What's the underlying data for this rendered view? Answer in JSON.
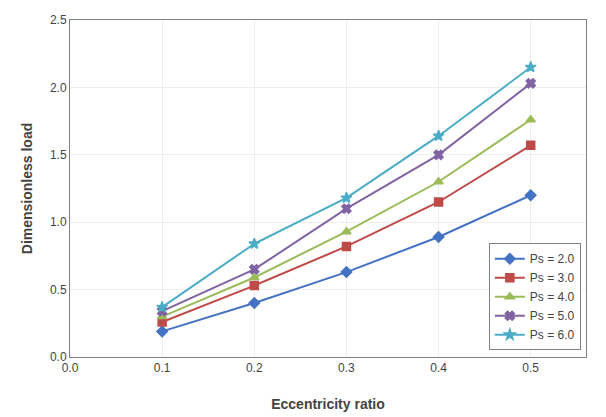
{
  "chart_data": {
    "type": "line",
    "x": [
      0.1,
      0.2,
      0.3,
      0.4,
      0.5
    ],
    "series": [
      {
        "name": "Ps = 2.0",
        "color": "#4472C4",
        "marker": "diamond",
        "values": [
          0.19,
          0.4,
          0.63,
          0.89,
          1.2
        ]
      },
      {
        "name": "Ps = 3.0",
        "color": "#BE4B48",
        "marker": "square",
        "values": [
          0.26,
          0.53,
          0.82,
          1.15,
          1.57
        ]
      },
      {
        "name": "Ps = 4.0",
        "color": "#9BBB59",
        "marker": "triangle-up",
        "values": [
          0.3,
          0.59,
          0.93,
          1.3,
          1.76
        ]
      },
      {
        "name": "Ps = 5.0",
        "color": "#8064A2",
        "marker": "x",
        "values": [
          0.34,
          0.65,
          1.1,
          1.5,
          2.03
        ]
      },
      {
        "name": "Ps = 6.0",
        "color": "#4BACC6",
        "marker": "star",
        "values": [
          0.37,
          0.84,
          1.18,
          1.64,
          2.15
        ]
      }
    ],
    "xlabel": "Eccentricity ratio",
    "ylabel": "Dimensionless load",
    "xlim": [
      0.0,
      0.56
    ],
    "ylim": [
      0.0,
      2.5
    ],
    "xticks": [
      {
        "value": 0.0,
        "label": "0.0"
      },
      0.1,
      0.2,
      0.3,
      0.4,
      0.5
    ],
    "yticks": [
      {
        "value": 0.0,
        "label": "0.0"
      },
      0.5,
      {
        "value": 1.0,
        "label": "1.0"
      },
      1.5,
      {
        "value": 2.0,
        "label": "2.0"
      },
      2.5
    ],
    "grid": true,
    "legend": "lower right"
  }
}
